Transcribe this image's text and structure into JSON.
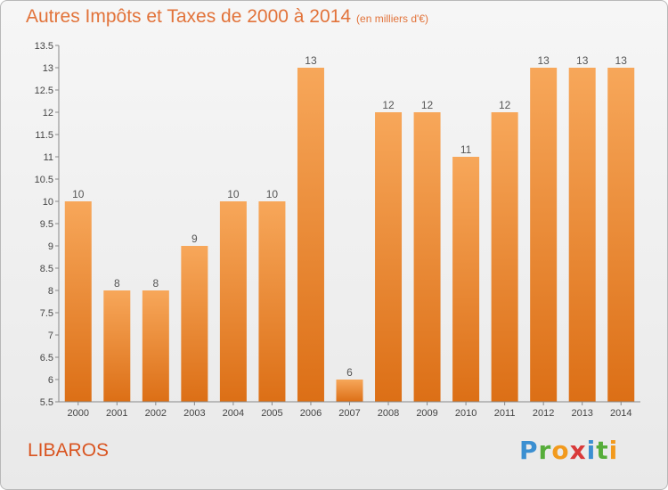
{
  "title": "Autres Impôts et Taxes de 2000 à 2014",
  "unit_note": "(en milliers d'€)",
  "commune": "LIBAROS",
  "brand": {
    "letters": [
      "P",
      "r",
      "o",
      "x",
      "i",
      "t",
      "i"
    ],
    "colors": [
      "#3b8fd1",
      "#56ad3a",
      "#f29a1d",
      "#d93a3a",
      "#3b8fd1",
      "#56ad3a",
      "#f29a1d"
    ]
  },
  "colors": {
    "accent": "#e2733a",
    "bar_top": "#f7a75a",
    "bar_bottom": "#dc6f16"
  },
  "chart_data": {
    "type": "bar",
    "categories": [
      "2000",
      "2001",
      "2002",
      "2003",
      "2004",
      "2005",
      "2006",
      "2007",
      "2008",
      "2009",
      "2010",
      "2011",
      "2012",
      "2013",
      "2014"
    ],
    "values": [
      10,
      8,
      8,
      9,
      10,
      10,
      13,
      6,
      12,
      12,
      11,
      12,
      13,
      13,
      13
    ],
    "ylim": [
      5.5,
      13.5
    ],
    "yticks": [
      "5.5",
      "6",
      "6.5",
      "7",
      "7.5",
      "8",
      "8.5",
      "9",
      "9.5",
      "10",
      "10.5",
      "11",
      "11.5",
      "12",
      "12.5",
      "13",
      "13.5"
    ],
    "grid": false,
    "xlabel": "",
    "ylabel": ""
  }
}
